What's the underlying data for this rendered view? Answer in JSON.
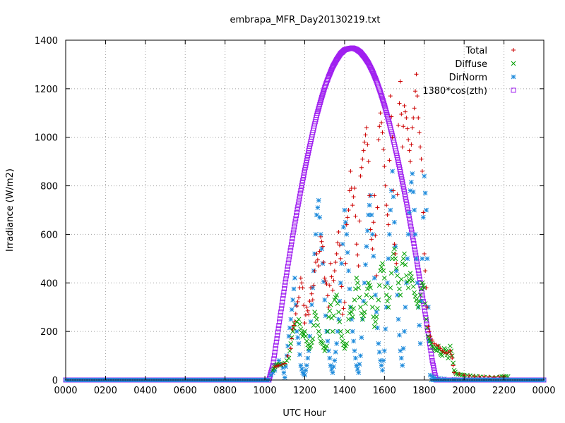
{
  "chart_data": {
    "type": "scatter",
    "title": "embrapa_MFR_Day20130219.txt",
    "xlabel": "UTC Hour",
    "ylabel": "Irradiance (W/m2)",
    "xlim": [
      0,
      24
    ],
    "ylim": [
      0,
      1400
    ],
    "x_ticks": [
      {
        "value": 0,
        "label": "0000"
      },
      {
        "value": 2,
        "label": "0200"
      },
      {
        "value": 4,
        "label": "0400"
      },
      {
        "value": 6,
        "label": "0600"
      },
      {
        "value": 8,
        "label": "0800"
      },
      {
        "value": 10,
        "label": "1000"
      },
      {
        "value": 12,
        "label": "1200"
      },
      {
        "value": 14,
        "label": "1400"
      },
      {
        "value": 16,
        "label": "1600"
      },
      {
        "value": 18,
        "label": "1800"
      },
      {
        "value": 20,
        "label": "2000"
      },
      {
        "value": 22,
        "label": "2200"
      },
      {
        "value": 24,
        "label": "0000"
      }
    ],
    "y_ticks": [
      0,
      200,
      400,
      600,
      800,
      1000,
      1200,
      1400
    ],
    "grid": true,
    "legend_position": "top-right",
    "series": [
      {
        "name": "Total",
        "marker": "plus",
        "color": "#cc0000",
        "points": [
          [
            10.5,
            55
          ],
          [
            10.7,
            60
          ],
          [
            11.0,
            68
          ],
          [
            11.3,
            130
          ],
          [
            11.4,
            210
          ],
          [
            11.5,
            240
          ],
          [
            11.6,
            305
          ],
          [
            11.7,
            340
          ],
          [
            11.8,
            420
          ],
          [
            11.9,
            380
          ],
          [
            12.0,
            235
          ],
          [
            12.1,
            300
          ],
          [
            12.2,
            270
          ],
          [
            12.3,
            380
          ],
          [
            12.4,
            330
          ],
          [
            12.5,
            450
          ],
          [
            12.6,
            520
          ],
          [
            12.7,
            470
          ],
          [
            12.8,
            590
          ],
          [
            12.9,
            550
          ],
          [
            13.0,
            420
          ],
          [
            13.1,
            395
          ],
          [
            13.2,
            300
          ],
          [
            13.3,
            480
          ],
          [
            13.4,
            370
          ],
          [
            13.5,
            450
          ],
          [
            13.6,
            520
          ],
          [
            13.7,
            610
          ],
          [
            13.8,
            500
          ],
          [
            13.9,
            270
          ],
          [
            14.0,
            320
          ],
          [
            14.1,
            640
          ],
          [
            14.2,
            700
          ],
          [
            14.3,
            860
          ],
          [
            14.4,
            720
          ],
          [
            14.5,
            790
          ],
          [
            14.6,
            560
          ],
          [
            14.7,
            470
          ],
          [
            14.8,
            840
          ],
          [
            14.9,
            910
          ],
          [
            15.0,
            980
          ],
          [
            15.1,
            1040
          ],
          [
            15.2,
            900
          ],
          [
            15.3,
            620
          ],
          [
            15.4,
            540
          ],
          [
            15.5,
            760
          ],
          [
            15.6,
            430
          ],
          [
            15.7,
            990
          ],
          [
            15.8,
            1100
          ],
          [
            15.9,
            1020
          ],
          [
            16.0,
            880
          ],
          [
            16.1,
            720
          ],
          [
            16.2,
            640
          ],
          [
            16.3,
            1170
          ],
          [
            16.4,
            1000
          ],
          [
            16.5,
            560
          ],
          [
            16.6,
            480
          ],
          [
            16.7,
            1050
          ],
          [
            16.8,
            1230
          ],
          [
            16.9,
            960
          ],
          [
            17.0,
            1130
          ],
          [
            17.1,
            1080
          ],
          [
            17.2,
            990
          ],
          [
            17.3,
            900
          ],
          [
            17.4,
            1040
          ],
          [
            17.5,
            1120
          ],
          [
            17.6,
            1260
          ],
          [
            17.7,
            1080
          ],
          [
            17.8,
            960
          ],
          [
            17.9,
            860
          ],
          [
            18.0,
            520
          ],
          [
            18.1,
            380
          ],
          [
            18.2,
            220
          ],
          [
            18.3,
            180
          ],
          [
            18.5,
            150
          ],
          [
            18.7,
            140
          ],
          [
            18.9,
            120
          ],
          [
            19.1,
            110
          ],
          [
            19.3,
            120
          ],
          [
            19.4,
            90
          ],
          [
            19.5,
            30
          ],
          [
            20.0,
            20
          ],
          [
            20.5,
            15
          ],
          [
            21.0,
            14
          ],
          [
            21.5,
            12
          ],
          [
            22.0,
            15
          ]
        ]
      },
      {
        "name": "Diffuse",
        "marker": "cross",
        "color": "#00a000",
        "points": [
          [
            10.4,
            40
          ],
          [
            10.5,
            55
          ],
          [
            10.6,
            65
          ],
          [
            10.8,
            62
          ],
          [
            11.0,
            70
          ],
          [
            11.2,
            90
          ],
          [
            11.3,
            150
          ],
          [
            11.4,
            200
          ],
          [
            11.5,
            230
          ],
          [
            11.7,
            250
          ],
          [
            11.8,
            210
          ],
          [
            11.9,
            180
          ],
          [
            12.0,
            200
          ],
          [
            12.1,
            160
          ],
          [
            12.2,
            130
          ],
          [
            12.3,
            140
          ],
          [
            12.4,
            170
          ],
          [
            12.5,
            280
          ],
          [
            12.6,
            250
          ],
          [
            12.7,
            200
          ],
          [
            12.8,
            160
          ],
          [
            12.9,
            150
          ],
          [
            13.0,
            120
          ],
          [
            13.1,
            140
          ],
          [
            13.2,
            260
          ],
          [
            13.3,
            310
          ],
          [
            13.4,
            200
          ],
          [
            13.5,
            330
          ],
          [
            13.6,
            350
          ],
          [
            13.7,
            280
          ],
          [
            13.8,
            200
          ],
          [
            13.9,
            160
          ],
          [
            14.0,
            130
          ],
          [
            14.1,
            150
          ],
          [
            14.2,
            250
          ],
          [
            14.3,
            300
          ],
          [
            14.4,
            260
          ],
          [
            14.5,
            330
          ],
          [
            14.6,
            420
          ],
          [
            14.7,
            380
          ],
          [
            14.8,
            300
          ],
          [
            14.9,
            250
          ],
          [
            15.0,
            280
          ],
          [
            15.1,
            350
          ],
          [
            15.2,
            400
          ],
          [
            15.3,
            380
          ],
          [
            15.4,
            300
          ],
          [
            15.5,
            220
          ],
          [
            15.6,
            260
          ],
          [
            15.7,
            330
          ],
          [
            15.8,
            450
          ],
          [
            15.9,
            480
          ],
          [
            16.0,
            420
          ],
          [
            16.1,
            350
          ],
          [
            16.2,
            300
          ],
          [
            16.3,
            380
          ],
          [
            16.4,
            500
          ],
          [
            16.5,
            540
          ],
          [
            16.6,
            460
          ],
          [
            16.7,
            400
          ],
          [
            16.8,
            350
          ],
          [
            16.9,
            480
          ],
          [
            17.0,
            520
          ],
          [
            17.1,
            430
          ],
          [
            17.2,
            380
          ],
          [
            17.3,
            440
          ],
          [
            17.4,
            410
          ],
          [
            17.5,
            360
          ],
          [
            17.6,
            330
          ],
          [
            17.7,
            300
          ],
          [
            17.8,
            350
          ],
          [
            17.9,
            400
          ],
          [
            18.0,
            380
          ],
          [
            18.1,
            250
          ],
          [
            18.2,
            180
          ],
          [
            18.3,
            160
          ],
          [
            18.4,
            140
          ],
          [
            18.5,
            130
          ],
          [
            18.6,
            120
          ],
          [
            18.7,
            140
          ],
          [
            18.8,
            110
          ],
          [
            18.9,
            100
          ],
          [
            19.0,
            130
          ],
          [
            19.1,
            120
          ],
          [
            19.2,
            90
          ],
          [
            19.3,
            140
          ],
          [
            19.4,
            100
          ],
          [
            19.5,
            40
          ],
          [
            19.6,
            25
          ],
          [
            19.8,
            22
          ],
          [
            20.0,
            20
          ],
          [
            20.3,
            18
          ],
          [
            20.6,
            15
          ],
          [
            21.0,
            12
          ],
          [
            21.4,
            10
          ],
          [
            21.8,
            12
          ],
          [
            22.0,
            15
          ],
          [
            22.2,
            14
          ]
        ]
      },
      {
        "name": "DirNorm",
        "marker": "star",
        "color": "#1e8bdc",
        "points": [
          [
            10.3,
            20
          ],
          [
            10.5,
            40
          ],
          [
            10.7,
            80
          ],
          [
            10.9,
            50
          ],
          [
            11.0,
            10
          ],
          [
            11.1,
            100
          ],
          [
            11.2,
            180
          ],
          [
            11.3,
            250
          ],
          [
            11.4,
            330
          ],
          [
            11.5,
            420
          ],
          [
            11.6,
            200
          ],
          [
            11.7,
            150
          ],
          [
            11.8,
            60
          ],
          [
            11.9,
            30
          ],
          [
            12.0,
            20
          ],
          [
            12.1,
            60
          ],
          [
            12.2,
            120
          ],
          [
            12.3,
            240
          ],
          [
            12.4,
            380
          ],
          [
            12.5,
            520
          ],
          [
            12.6,
            680
          ],
          [
            12.7,
            740
          ],
          [
            12.8,
            600
          ],
          [
            12.9,
            480
          ],
          [
            13.0,
            330
          ],
          [
            13.1,
            200
          ],
          [
            13.2,
            120
          ],
          [
            13.3,
            60
          ],
          [
            13.4,
            30
          ],
          [
            13.5,
            80
          ],
          [
            13.6,
            150
          ],
          [
            13.7,
            250
          ],
          [
            13.8,
            400
          ],
          [
            13.9,
            560
          ],
          [
            14.0,
            700
          ],
          [
            14.1,
            600
          ],
          [
            14.2,
            450
          ],
          [
            14.3,
            300
          ],
          [
            14.4,
            200
          ],
          [
            14.5,
            120
          ],
          [
            14.6,
            60
          ],
          [
            14.7,
            30
          ],
          [
            14.8,
            100
          ],
          [
            14.9,
            250
          ],
          [
            15.0,
            400
          ],
          [
            15.1,
            550
          ],
          [
            15.2,
            680
          ],
          [
            15.3,
            760
          ],
          [
            15.4,
            600
          ],
          [
            15.5,
            420
          ],
          [
            15.6,
            280
          ],
          [
            15.7,
            150
          ],
          [
            15.8,
            80
          ],
          [
            15.9,
            40
          ],
          [
            16.0,
            120
          ],
          [
            16.1,
            300
          ],
          [
            16.2,
            500
          ],
          [
            16.3,
            700
          ],
          [
            16.4,
            860
          ],
          [
            16.5,
            650
          ],
          [
            16.6,
            450
          ],
          [
            16.7,
            250
          ],
          [
            16.8,
            120
          ],
          [
            16.9,
            60
          ],
          [
            17.0,
            200
          ],
          [
            17.1,
            400
          ],
          [
            17.2,
            600
          ],
          [
            17.3,
            780
          ],
          [
            17.4,
            850
          ],
          [
            17.5,
            700
          ],
          [
            17.6,
            500
          ],
          [
            17.7,
            300
          ],
          [
            17.8,
            150
          ],
          [
            17.9,
            500
          ],
          [
            18.0,
            840
          ],
          [
            18.1,
            700
          ],
          [
            18.2,
            300
          ],
          [
            18.3,
            20
          ],
          [
            18.5,
            10
          ],
          [
            19.0,
            5
          ],
          [
            20.0,
            0
          ],
          [
            22.0,
            0
          ]
        ]
      },
      {
        "name": "1380*cos(zth)",
        "marker": "square",
        "color": "#a020f0",
        "points": [
          [
            10.2,
            0
          ],
          [
            10.4,
            60
          ],
          [
            10.6,
            170
          ],
          [
            10.8,
            280
          ],
          [
            11.0,
            390
          ],
          [
            11.2,
            495
          ],
          [
            11.4,
            595
          ],
          [
            11.6,
            690
          ],
          [
            11.8,
            780
          ],
          [
            12.0,
            865
          ],
          [
            12.2,
            945
          ],
          [
            12.4,
            1020
          ],
          [
            12.6,
            1090
          ],
          [
            12.8,
            1150
          ],
          [
            13.0,
            1205
          ],
          [
            13.2,
            1250
          ],
          [
            13.4,
            1290
          ],
          [
            13.6,
            1320
          ],
          [
            13.8,
            1345
          ],
          [
            14.0,
            1360
          ],
          [
            14.2,
            1365
          ],
          [
            14.4,
            1368
          ],
          [
            14.6,
            1362
          ],
          [
            14.8,
            1350
          ],
          [
            15.0,
            1330
          ],
          [
            15.2,
            1305
          ],
          [
            15.4,
            1272
          ],
          [
            15.6,
            1232
          ],
          [
            15.8,
            1185
          ],
          [
            16.0,
            1132
          ],
          [
            16.2,
            1072
          ],
          [
            16.4,
            1006
          ],
          [
            16.6,
            935
          ],
          [
            16.8,
            858
          ],
          [
            17.0,
            776
          ],
          [
            17.2,
            690
          ],
          [
            17.4,
            598
          ],
          [
            17.6,
            502
          ],
          [
            17.8,
            402
          ],
          [
            18.0,
            298
          ],
          [
            18.2,
            190
          ],
          [
            18.4,
            80
          ],
          [
            18.6,
            0
          ]
        ]
      }
    ]
  }
}
